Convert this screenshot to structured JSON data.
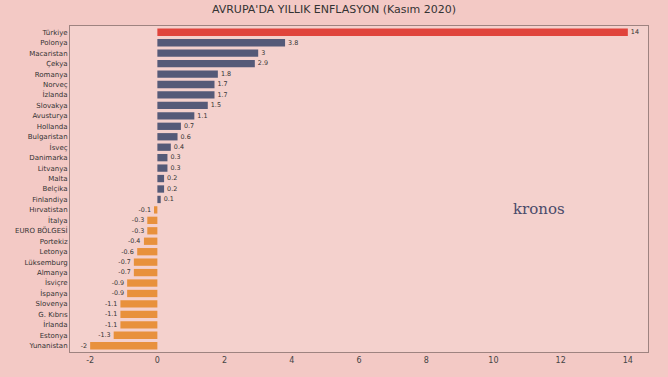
{
  "chart_data": {
    "type": "bar",
    "orientation": "horizontal",
    "title": "AVRUPA'DA YILLIK ENFLASYON (Kasım 2020)",
    "categories": [
      "Türkiye",
      "Polonya",
      "Macaristan",
      "Çekya",
      "Romanya",
      "Norveç",
      "İzlanda",
      "Slovakya",
      "Avusturya",
      "Hollanda",
      "Bulgaristan",
      "İsveç",
      "Danimarka",
      "Litvanya",
      "Malta",
      "Belçika",
      "Finlandiya",
      "Hırvatistan",
      "İtalya",
      "EURO BÖLGESİ",
      "Portekiz",
      "Letonya",
      "Lüksemburg",
      "Almanya",
      "İsviçre",
      "İspanya",
      "Slovenya",
      "G. Kıbrıs",
      "İrlanda",
      "Estonya",
      "Yunanistan"
    ],
    "values": [
      14,
      3.8,
      3,
      2.9,
      1.8,
      1.7,
      1.7,
      1.5,
      1.1,
      0.7,
      0.6,
      0.4,
      0.3,
      0.3,
      0.2,
      0.2,
      0.1,
      -0.1,
      -0.3,
      -0.3,
      -0.4,
      -0.6,
      -0.7,
      -0.7,
      -0.9,
      -0.9,
      -1.1,
      -1.1,
      -1.1,
      -1.3,
      -2
    ],
    "colors": [
      "#e0443c",
      "#555a78",
      "#555a78",
      "#555a78",
      "#555a78",
      "#555a78",
      "#555a78",
      "#555a78",
      "#555a78",
      "#555a78",
      "#555a78",
      "#555a78",
      "#555a78",
      "#555a78",
      "#555a78",
      "#555a78",
      "#555a78",
      "#e8913c",
      "#e8913c",
      "#e8913c",
      "#e8913c",
      "#e8913c",
      "#e8913c",
      "#e8913c",
      "#e8913c",
      "#e8913c",
      "#e8913c",
      "#e8913c",
      "#e8913c",
      "#e8913c",
      "#e8913c"
    ],
    "xlim": [
      -2.6,
      14.6
    ],
    "xticks": [
      -2,
      0,
      2,
      4,
      6,
      8,
      10,
      12,
      14
    ],
    "grid": false,
    "data_labels": true,
    "annotations": [
      {
        "text": "kronos"
      }
    ]
  }
}
